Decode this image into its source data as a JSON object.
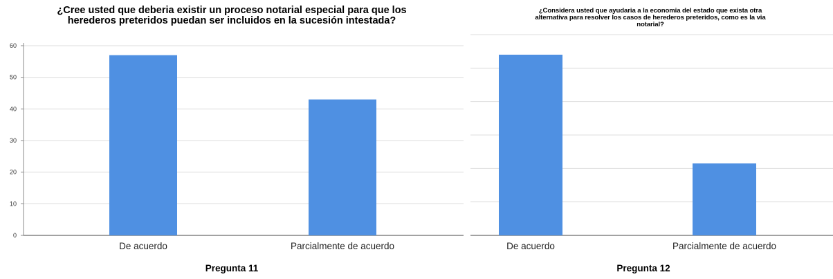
{
  "chart_data": [
    {
      "type": "bar",
      "title": "¿Cree usted que deberia existir un proceso notarial especial para que los herederos preteridos puedan ser incluidos en la sucesión intestada?",
      "title_lines": [
        "¿Cree usted que deberia existir un proceso notarial especial para que los",
        "herederos preteridos puedan ser incluidos en la sucesión intestada?"
      ],
      "categories": [
        "De acuerdo",
        "Parcialmente de acuerdo"
      ],
      "values": [
        57,
        43
      ],
      "xlabel": "Pregunta 11",
      "ylabel": "",
      "ylim": [
        0,
        60
      ],
      "yticks": [
        0,
        10,
        20,
        30,
        40,
        50,
        60
      ],
      "grid": true,
      "bar_color": "#4f90e2"
    },
    {
      "type": "bar",
      "title": "¿Considera usted que ayudaria a la economia del estado que exista otra alternativa para resolver los casos de herederos preteridos, como es la via notarial?",
      "title_lines": [
        "¿Considera usted que ayudaria a la economia del estado que exista otra",
        "alternativa para resolver los casos de herederos preteridos, como es la via",
        "notarial?"
      ],
      "categories": [
        "De acuerdo",
        "Parcialmente de acuerdo"
      ],
      "values": [
        54,
        21.5
      ],
      "xlabel": "Pregunta 12",
      "ylabel": "",
      "ylim": [
        0,
        60
      ],
      "yticks": [],
      "grid": true,
      "bar_color": "#4f90e2"
    }
  ]
}
